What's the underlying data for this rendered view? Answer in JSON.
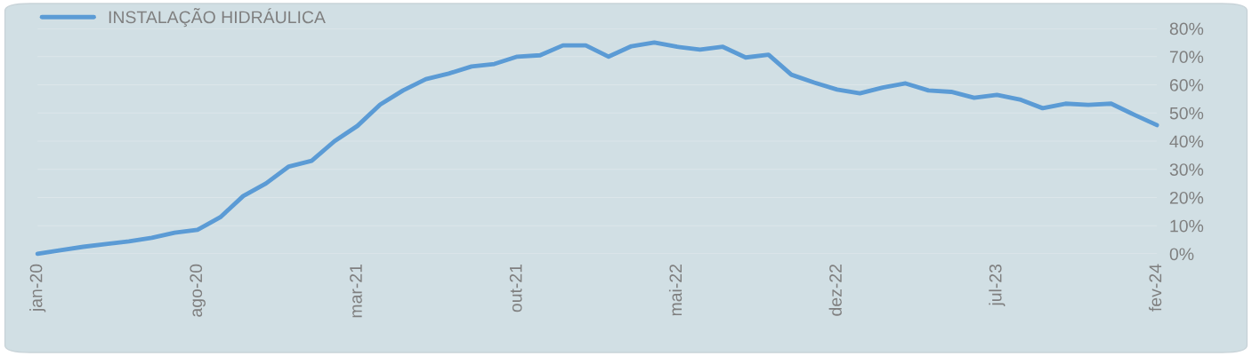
{
  "chart_data": {
    "type": "line",
    "legend": "top left",
    "grid": "y",
    "line_style": "solid",
    "marker": "none",
    "categories": [
      "jan-20",
      null,
      null,
      null,
      null,
      null,
      null,
      "ago-20",
      null,
      null,
      null,
      null,
      null,
      null,
      "mar-21",
      null,
      null,
      null,
      null,
      null,
      null,
      "out-21",
      null,
      null,
      null,
      null,
      null,
      null,
      "mai-22",
      null,
      null,
      null,
      null,
      null,
      null,
      "dez-22",
      null,
      null,
      null,
      null,
      null,
      null,
      "jul-23",
      null,
      null,
      null,
      null,
      null,
      null,
      "fev-24"
    ],
    "series": [
      {
        "name": "INSTALAÇÃO HIDRÁULICA",
        "color": "#5b9bd5",
        "values": [
          0,
          1.3,
          2.5,
          3.5,
          4.4,
          5.7,
          7.5,
          8.5,
          13,
          20.5,
          25,
          31,
          33,
          40,
          45.4,
          53,
          58,
          62,
          64,
          66.5,
          67.4,
          70,
          70.5,
          74,
          74,
          70,
          73.7,
          75,
          73.5,
          72.5,
          73.5,
          69.7,
          70.7,
          63.6,
          60.8,
          58.3,
          57,
          59,
          60.5,
          58,
          57.5,
          55.4,
          56.4,
          54.8,
          51.7,
          53.3,
          52.9,
          53.3,
          49.4,
          45.7
        ]
      }
    ],
    "ylim": [
      0,
      80
    ],
    "yticks": [
      {
        "value": 0,
        "label": "0%"
      },
      {
        "value": 10,
        "label": "10%"
      },
      {
        "value": 20,
        "label": "20%"
      },
      {
        "value": 30,
        "label": "30%"
      },
      {
        "value": 40,
        "label": "40%"
      },
      {
        "value": 50,
        "label": "50%"
      },
      {
        "value": 60,
        "label": "60%"
      },
      {
        "value": 70,
        "label": "70%"
      },
      {
        "value": 80,
        "label": "80%"
      }
    ]
  }
}
